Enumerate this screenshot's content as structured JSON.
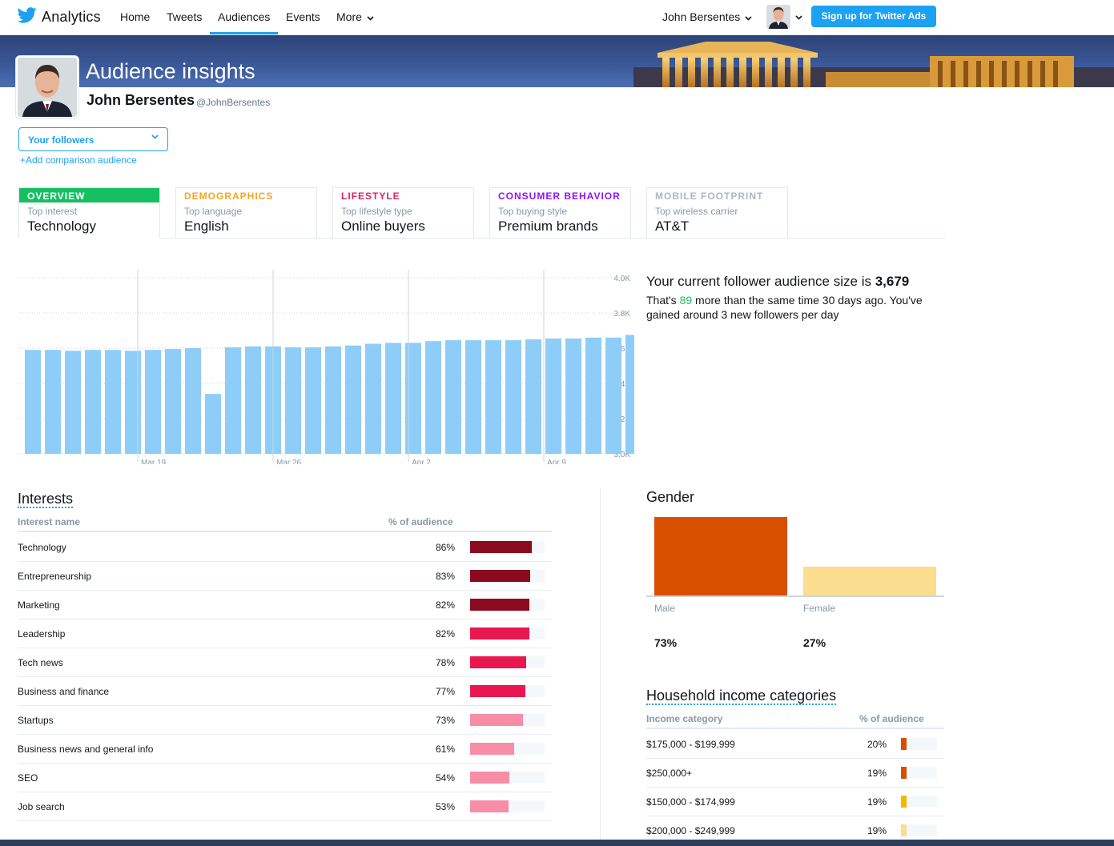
{
  "nav": {
    "brand": "Analytics",
    "items": [
      "Home",
      "Tweets",
      "Audiences",
      "Events",
      "More"
    ],
    "user_name": "John Bersentes",
    "ads_button": "Sign up for Twitter Ads"
  },
  "header": {
    "title": "Audience insights",
    "name": "John Bersentes",
    "handle": "@JohnBersentes"
  },
  "audience": {
    "selected": "Your followers",
    "add_comparison": "+Add comparison audience"
  },
  "tabs": [
    {
      "head": "OVERVIEW",
      "sub": "Top interest",
      "value": "Technology",
      "color": "#17bf63"
    },
    {
      "head": "DEMOGRAPHICS",
      "sub": "Top language",
      "value": "English",
      "color": "#f5a623"
    },
    {
      "head": "LIFESTYLE",
      "sub": "Top lifestyle type",
      "value": "Online buyers",
      "color": "#e0245e"
    },
    {
      "head": "CONSUMER BEHAVIOR",
      "sub": "Top buying style",
      "value": "Premium brands",
      "color": "#9013fe"
    },
    {
      "head": "MOBILE FOOTPRINT",
      "sub": "Top wireless carrier",
      "value": "AT&T",
      "color": "#aab8c2"
    }
  ],
  "chart_data": {
    "type": "bar",
    "title": "",
    "xlabel": "",
    "ylabel": "",
    "x_tick_labels": [
      "Mar 19",
      "Mar 26",
      "Apr 2",
      "Apr 9"
    ],
    "y_tick_labels": [
      "4.0K",
      "3.8K",
      "3.6K",
      "3.4K",
      "3.2K",
      "3.0K"
    ],
    "ylim": [
      3000,
      4000
    ],
    "values": [
      3590,
      3590,
      3585,
      3590,
      3590,
      3585,
      3590,
      3595,
      3600,
      3340,
      3605,
      3610,
      3610,
      3605,
      3605,
      3610,
      3615,
      3625,
      3630,
      3630,
      3640,
      3645,
      3645,
      3645,
      3645,
      3650,
      3655,
      3655,
      3660,
      3660,
      3675,
      3675,
      3675,
      3675
    ],
    "grid": true,
    "color": "#8ecdf8"
  },
  "summary": {
    "prefix": "Your current follower audience size is",
    "size": "3,679",
    "line2_a": "That's",
    "more": "89",
    "line2_b": "more than the same time 30 days ago. You've gained around 3 new followers per day"
  },
  "interests": {
    "title": "Interests",
    "col_name": "Interest name",
    "col_pct": "% of audience",
    "rows": [
      {
        "name": "Technology",
        "pct": "86%",
        "value": 86,
        "color": "#8b0a1f"
      },
      {
        "name": "Entrepreneurship",
        "pct": "83%",
        "value": 83,
        "color": "#8b0a1f"
      },
      {
        "name": "Marketing",
        "pct": "82%",
        "value": 82,
        "color": "#8b0a1f"
      },
      {
        "name": "Leadership",
        "pct": "82%",
        "value": 82,
        "color": "#e8174f"
      },
      {
        "name": "Tech news",
        "pct": "78%",
        "value": 78,
        "color": "#e8174f"
      },
      {
        "name": "Business and finance",
        "pct": "77%",
        "value": 77,
        "color": "#e8174f"
      },
      {
        "name": "Startups",
        "pct": "73%",
        "value": 73,
        "color": "#f78da7"
      },
      {
        "name": "Business news and general info",
        "pct": "61%",
        "value": 61,
        "color": "#f78da7"
      },
      {
        "name": "SEO",
        "pct": "54%",
        "value": 54,
        "color": "#f78da7"
      },
      {
        "name": "Job search",
        "pct": "53%",
        "value": 53,
        "color": "#f78da7"
      }
    ]
  },
  "gender": {
    "title": "Gender",
    "items": [
      {
        "label": "Male",
        "pct": "73%",
        "value": 73,
        "color": "#d94f00"
      },
      {
        "label": "Female",
        "pct": "27%",
        "value": 27,
        "color": "#fbdd8f"
      }
    ]
  },
  "income": {
    "title": "Household income categories",
    "col_name": "Income category",
    "col_pct": "% of audience",
    "rows": [
      {
        "name": "$175,000 - $199,999",
        "pct": "20%",
        "value": 20,
        "color": "#d94f00"
      },
      {
        "name": "$250,000+",
        "pct": "19%",
        "value": 19,
        "color": "#d94f00"
      },
      {
        "name": "$150,000 - $174,999",
        "pct": "19%",
        "value": 19,
        "color": "#f5b800"
      },
      {
        "name": "$200,000 - $249,999",
        "pct": "19%",
        "value": 19,
        "color": "#fbdd8f"
      }
    ]
  }
}
